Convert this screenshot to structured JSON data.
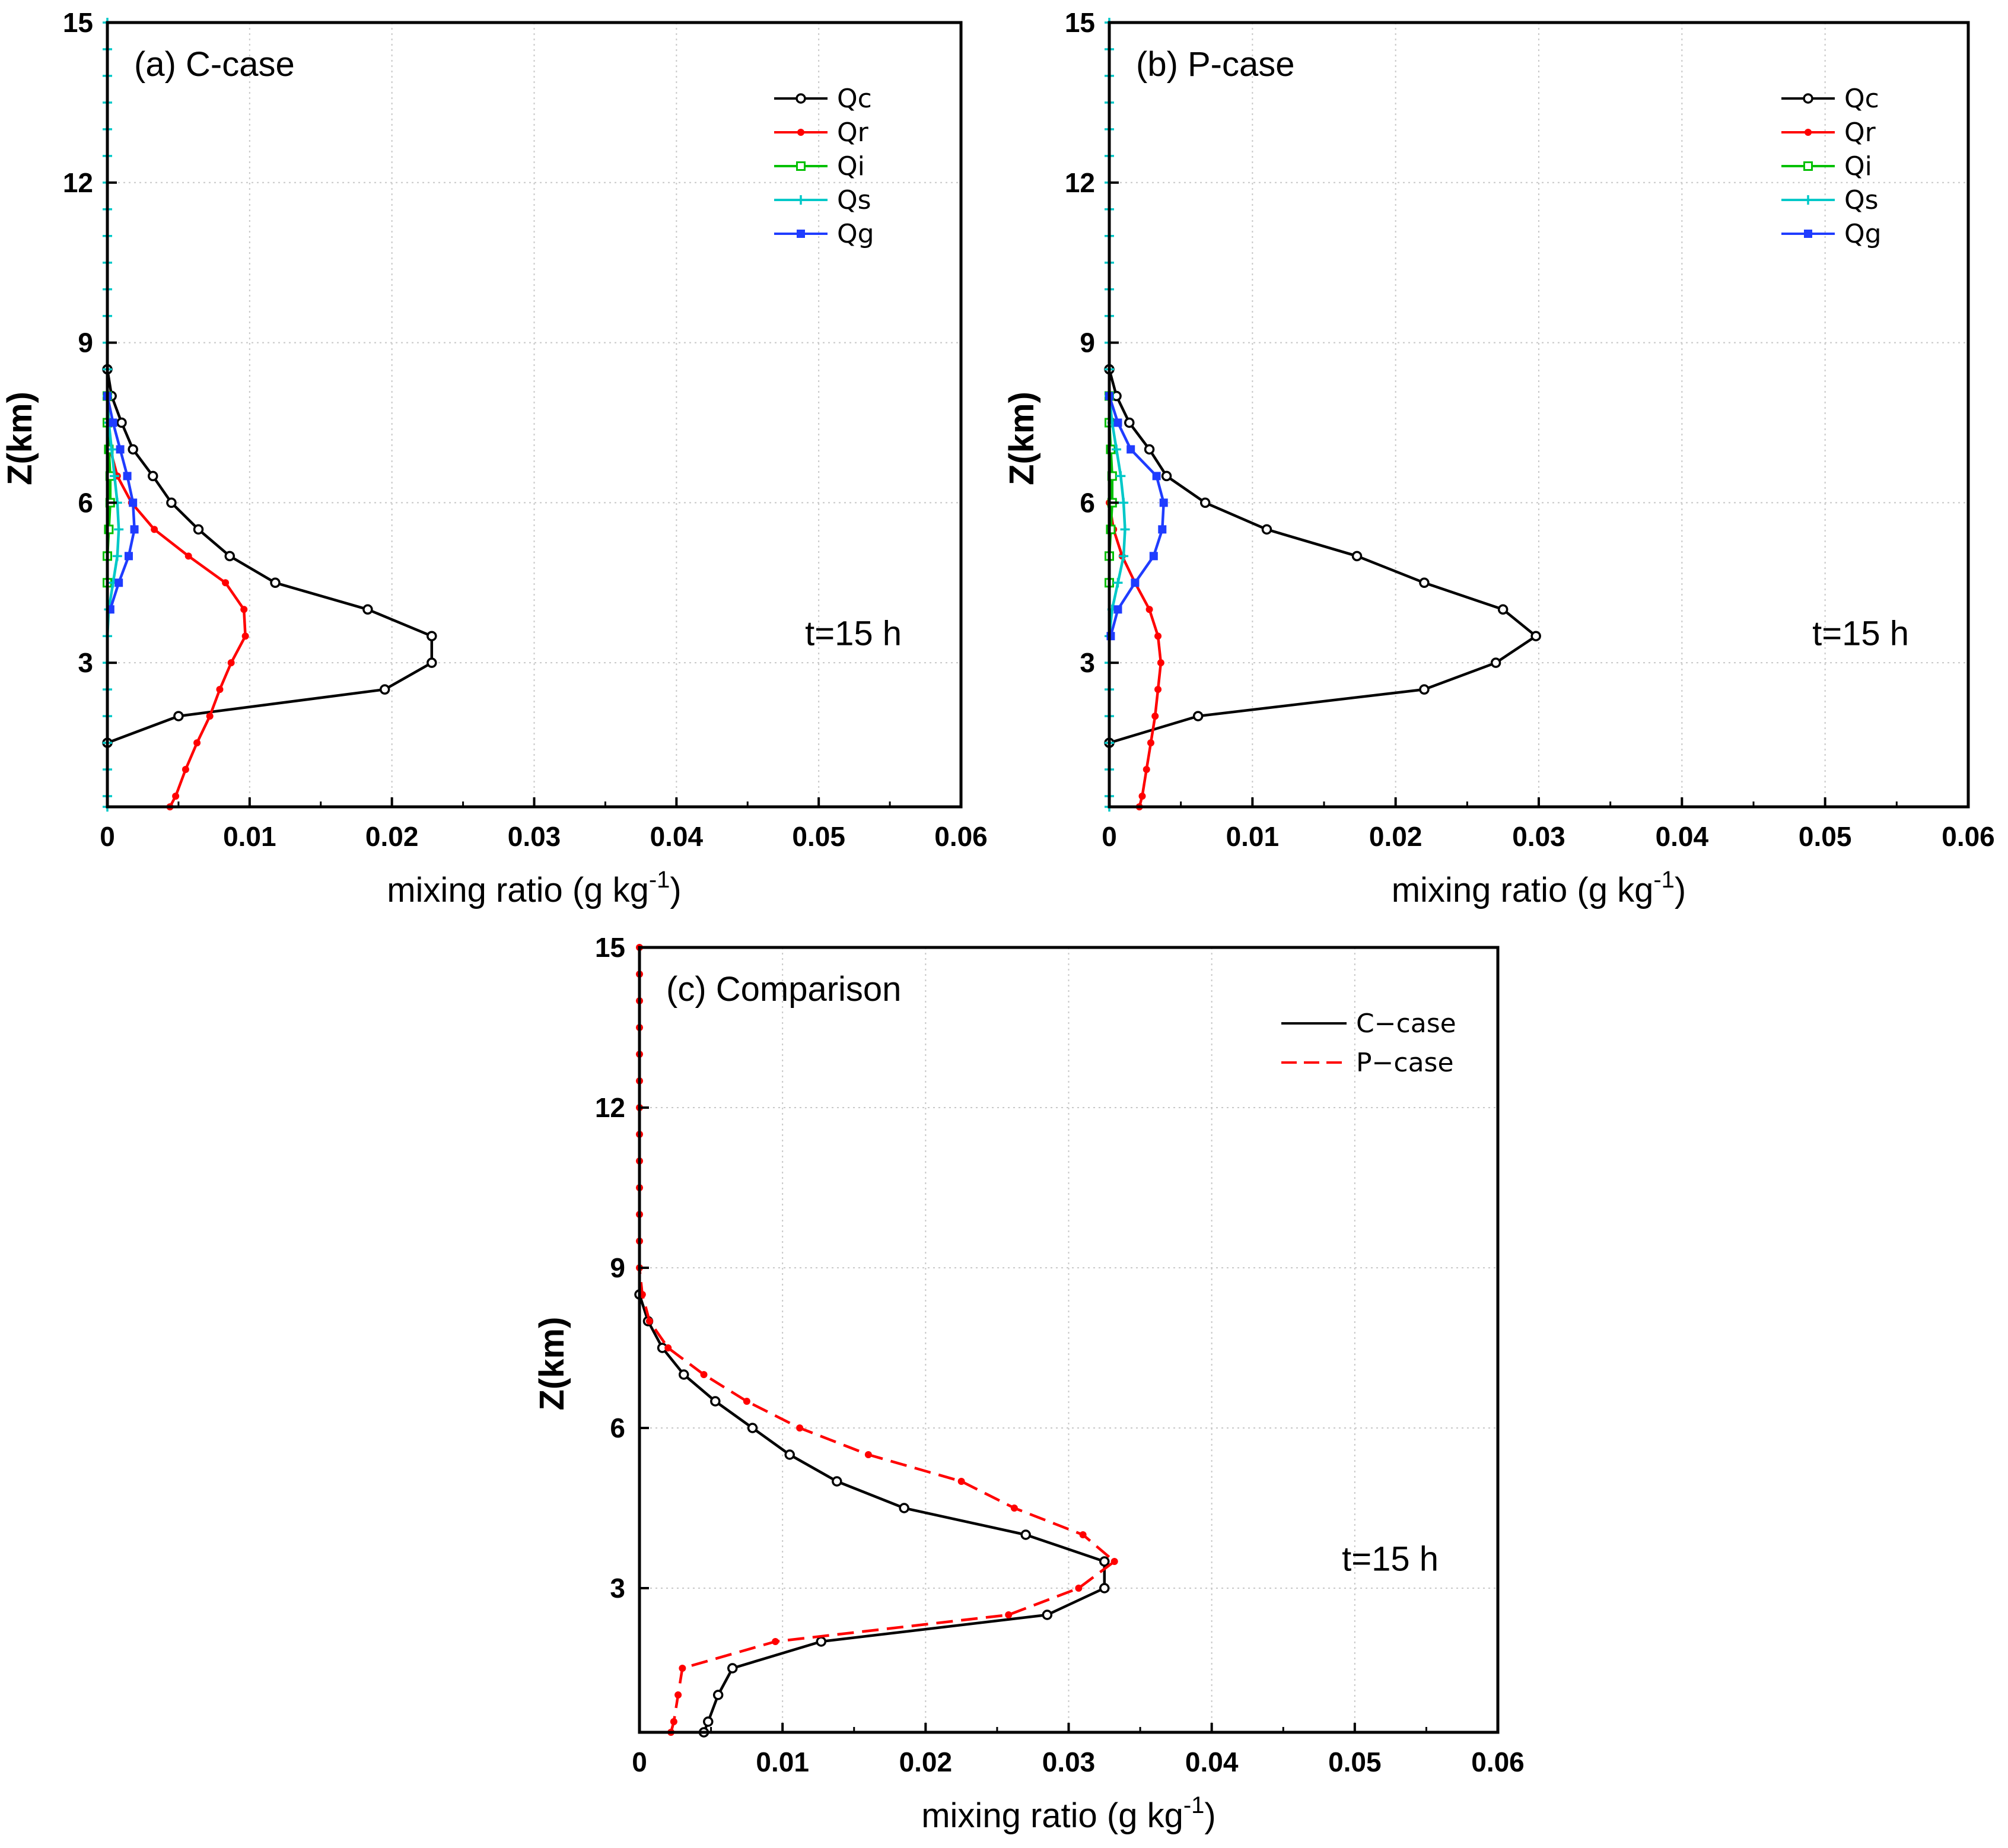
{
  "chart_data": [
    {
      "type": "line",
      "panel_label": "(a) C-case",
      "xlabel": "mixing ratio (g kg",
      "xlabel_sup": "-1",
      "xlabel_end": ")",
      "ylabel": "Z(km)",
      "xlim": [
        0,
        0.06
      ],
      "ylim": [
        0.3,
        15
      ],
      "xticks": [
        0,
        0.01,
        0.02,
        0.03,
        0.04,
        0.05,
        0.06
      ],
      "xtick_labels": [
        "0",
        "0.01",
        "0.02",
        "0.03",
        "0.04",
        "0.05",
        "0.06"
      ],
      "yticks": [
        3,
        6,
        9,
        12,
        15
      ],
      "ytick_labels": [
        "3",
        "6",
        "9",
        "12",
        "15"
      ],
      "grid": true,
      "legend_position": "top-right",
      "annotation": "t=15 h",
      "series": [
        {
          "name": "Qc",
          "color": "#000000",
          "marker": "open-circle",
          "dash": "solid",
          "x": [
            0,
            0.005,
            0.0195,
            0.0228,
            0.0228,
            0.0183,
            0.0118,
            0.0086,
            0.0064,
            0.0045,
            0.0032,
            0.0018,
            0.001,
            0.0003,
            0
          ],
          "y": [
            1.5,
            2.0,
            2.5,
            3.0,
            3.5,
            4.0,
            4.5,
            5.0,
            5.5,
            6.0,
            6.5,
            7.0,
            7.5,
            8.0,
            8.5
          ]
        },
        {
          "name": "Qr",
          "color": "#ff0000",
          "marker": "filled-circle",
          "dash": "solid",
          "x": [
            0.0044,
            0.0048,
            0.0055,
            0.0063,
            0.0072,
            0.0079,
            0.0087,
            0.0097,
            0.0096,
            0.0083,
            0.0057,
            0.0033,
            0.0017,
            0.0007,
            0.0002,
            0
          ],
          "y": [
            0.3,
            0.5,
            1.0,
            1.5,
            2.0,
            2.5,
            3.0,
            3.5,
            4.0,
            4.5,
            5.0,
            5.5,
            6.0,
            6.5,
            7.0,
            7.5
          ]
        },
        {
          "name": "Qi",
          "color": "#00c000",
          "marker": "open-square",
          "dash": "solid",
          "x": [
            0,
            0,
            0.0001,
            0.0002,
            0.0002,
            0.0001,
            0,
            0
          ],
          "y": [
            4.5,
            5.0,
            5.5,
            6.0,
            6.5,
            7.0,
            7.5,
            8.0
          ]
        },
        {
          "name": "Qs",
          "color": "#00c8c8",
          "marker": "plus",
          "dash": "solid",
          "x": [
            0,
            0,
            0,
            0,
            0,
            0,
            0,
            0,
            0.0001,
            0.0004,
            0.0007,
            0.0008,
            0.0007,
            0.0005,
            0.0003,
            0.0001,
            0,
            0,
            0,
            0,
            0,
            0,
            0,
            0,
            0,
            0,
            0,
            0,
            0,
            0,
            0
          ],
          "y": [
            0.3,
            0.5,
            1.0,
            1.5,
            2.0,
            2.5,
            3.0,
            3.5,
            4.0,
            4.5,
            5.0,
            5.5,
            6.0,
            6.5,
            7.0,
            7.5,
            8.0,
            8.5,
            9.0,
            9.5,
            10.0,
            10.5,
            11.0,
            11.5,
            12.0,
            12.5,
            13.0,
            13.5,
            14.0,
            14.5,
            15.0
          ]
        },
        {
          "name": "Qg",
          "color": "#1f3cff",
          "marker": "filled-square",
          "dash": "solid",
          "x": [
            0.0002,
            0.0008,
            0.0015,
            0.0019,
            0.0018,
            0.0014,
            0.0009,
            0.0004,
            0
          ],
          "y": [
            4.0,
            4.5,
            5.0,
            5.5,
            6.0,
            6.5,
            7.0,
            7.5,
            8.0
          ]
        }
      ]
    },
    {
      "type": "line",
      "panel_label": "(b) P-case",
      "xlabel": "mixing ratio (g kg",
      "xlabel_sup": "-1",
      "xlabel_end": ")",
      "ylabel": "Z(km)",
      "xlim": [
        0,
        0.06
      ],
      "ylim": [
        0.3,
        15
      ],
      "xticks": [
        0,
        0.01,
        0.02,
        0.03,
        0.04,
        0.05,
        0.06
      ],
      "xtick_labels": [
        "0",
        "0.01",
        "0.02",
        "0.03",
        "0.04",
        "0.05",
        "0.06"
      ],
      "yticks": [
        3,
        6,
        9,
        12,
        15
      ],
      "ytick_labels": [
        "3",
        "6",
        "9",
        "12",
        "15"
      ],
      "grid": true,
      "legend_position": "top-right",
      "annotation": "t=15 h",
      "series": [
        {
          "name": "Qc",
          "color": "#000000",
          "marker": "open-circle",
          "dash": "solid",
          "x": [
            0,
            0.0062,
            0.022,
            0.027,
            0.0298,
            0.0275,
            0.022,
            0.0173,
            0.011,
            0.0067,
            0.004,
            0.0028,
            0.0014,
            0.0005,
            0
          ],
          "y": [
            1.5,
            2.0,
            2.5,
            3.0,
            3.5,
            4.0,
            4.5,
            5.0,
            5.5,
            6.0,
            6.5,
            7.0,
            7.5,
            8.0,
            8.5
          ]
        },
        {
          "name": "Qr",
          "color": "#ff0000",
          "marker": "filled-circle",
          "dash": "solid",
          "x": [
            0.0021,
            0.0023,
            0.0026,
            0.0029,
            0.0032,
            0.0034,
            0.0036,
            0.0034,
            0.0028,
            0.0018,
            0.0009,
            0.0003,
            0
          ],
          "y": [
            0.3,
            0.5,
            1.0,
            1.5,
            2.0,
            2.5,
            3.0,
            3.5,
            4.0,
            4.5,
            5.0,
            5.5,
            6.0
          ]
        },
        {
          "name": "Qi",
          "color": "#00c000",
          "marker": "open-square",
          "dash": "solid",
          "x": [
            0,
            0,
            0.0001,
            0.0002,
            0.0002,
            0.0001,
            0,
            0
          ],
          "y": [
            4.5,
            5.0,
            5.5,
            6.0,
            6.5,
            7.0,
            7.5,
            8.0
          ]
        },
        {
          "name": "Qs",
          "color": "#00c8c8",
          "marker": "plus",
          "dash": "solid",
          "x": [
            0,
            0,
            0,
            0,
            0,
            0,
            0,
            0,
            0.0002,
            0.0006,
            0.001,
            0.0011,
            0.001,
            0.0008,
            0.0005,
            0.0002,
            0,
            0,
            0,
            0,
            0,
            0,
            0,
            0,
            0,
            0,
            0,
            0,
            0,
            0,
            0
          ],
          "y": [
            0.3,
            0.5,
            1.0,
            1.5,
            2.0,
            2.5,
            3.0,
            3.5,
            4.0,
            4.5,
            5.0,
            5.5,
            6.0,
            6.5,
            7.0,
            7.5,
            8.0,
            8.5,
            9.0,
            9.5,
            10.0,
            10.5,
            11.0,
            11.5,
            12.0,
            12.5,
            13.0,
            13.5,
            14.0,
            14.5,
            15.0
          ]
        },
        {
          "name": "Qg",
          "color": "#1f3cff",
          "marker": "filled-square",
          "dash": "solid",
          "x": [
            0.0001,
            0.0006,
            0.0018,
            0.0031,
            0.0037,
            0.0038,
            0.0033,
            0.0015,
            0.0006,
            0
          ],
          "y": [
            3.5,
            4.0,
            4.5,
            5.0,
            5.5,
            6.0,
            6.5,
            7.0,
            7.5,
            8.0
          ]
        }
      ]
    },
    {
      "type": "line",
      "panel_label": "(c) Comparison",
      "xlabel": "mixing ratio (g kg",
      "xlabel_sup": "-1",
      "xlabel_end": ")",
      "ylabel": "Z(km)",
      "xlim": [
        0,
        0.06
      ],
      "ylim": [
        0.3,
        15
      ],
      "xticks": [
        0,
        0.01,
        0.02,
        0.03,
        0.04,
        0.05,
        0.06
      ],
      "xtick_labels": [
        "0",
        "0.01",
        "0.02",
        "0.03",
        "0.04",
        "0.05",
        "0.06"
      ],
      "yticks": [
        3,
        6,
        9,
        12,
        15
      ],
      "ytick_labels": [
        "3",
        "6",
        "9",
        "12",
        "15"
      ],
      "grid": true,
      "legend_position": "top-right",
      "annotation": "t=15 h",
      "series": [
        {
          "name": "C−case",
          "color": "#000000",
          "marker": "open-circle",
          "dash": "solid",
          "x": [
            0.0045,
            0.0048,
            0.0055,
            0.0065,
            0.0127,
            0.0285,
            0.0325,
            0.0325,
            0.027,
            0.0185,
            0.0138,
            0.0105,
            0.0079,
            0.0053,
            0.0031,
            0.0016,
            0.0006,
            0
          ],
          "y": [
            0.3,
            0.5,
            1.0,
            1.5,
            2.0,
            2.5,
            3.0,
            3.5,
            4.0,
            4.5,
            5.0,
            5.5,
            6.0,
            6.5,
            7.0,
            7.5,
            8.0,
            8.5
          ]
        },
        {
          "name": "P−case",
          "color": "#ff0000",
          "marker": "filled-circle",
          "dash": "dash",
          "x": [
            0.0022,
            0.0024,
            0.0027,
            0.003,
            0.0095,
            0.0258,
            0.0307,
            0.0332,
            0.031,
            0.0262,
            0.0225,
            0.016,
            0.0112,
            0.0075,
            0.0045,
            0.002,
            0.0007,
            0.0002,
            0,
            0,
            0,
            0,
            0,
            0,
            0,
            0,
            0,
            0,
            0,
            0,
            0
          ],
          "y": [
            0.3,
            0.5,
            1.0,
            1.5,
            2.0,
            2.5,
            3.0,
            3.5,
            4.0,
            4.5,
            5.0,
            5.5,
            6.0,
            6.5,
            7.0,
            7.5,
            8.0,
            8.5,
            9.0,
            9.5,
            10.0,
            10.5,
            11.0,
            11.5,
            12.0,
            12.5,
            13.0,
            13.5,
            14.0,
            14.5,
            15.0
          ]
        }
      ]
    }
  ]
}
